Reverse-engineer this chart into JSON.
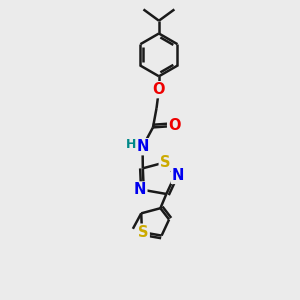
{
  "bg_color": "#ebebeb",
  "bond_color": "#1a1a1a",
  "bond_width": 1.8,
  "atom_colors": {
    "C": "#1a1a1a",
    "N": "#0000ee",
    "O": "#ee0000",
    "S": "#ccaa00",
    "H": "#008888"
  },
  "font_size": 9.5,
  "scale": 1.0
}
